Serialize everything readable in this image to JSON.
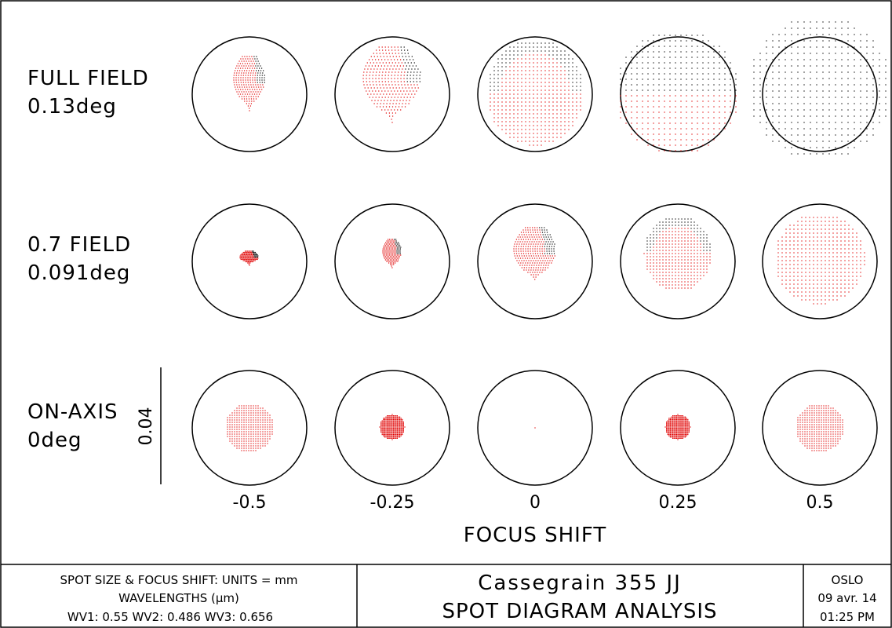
{
  "title": "Cassegrain 355 JJ",
  "subtitle": "SPOT DIAGRAM ANALYSIS",
  "program": "OSLO",
  "date": "09 avr. 14",
  "time": "01:25 PM",
  "units_line": "SPOT SIZE & FOCUS SHIFT: UNITS = mm",
  "wavelengths_label": "WAVELENGTHS (μm)",
  "wavelengths_line": "WV1: 0.55 WV2: 0.486 WV3: 0.656",
  "scale_label": "0.04",
  "fields": [
    {
      "name": "FULL FIELD",
      "angle": "0.13deg"
    },
    {
      "name": "0.7 FIELD",
      "angle": "0.091deg"
    },
    {
      "name": "ON-AXIS",
      "angle": "0deg"
    }
  ],
  "chart_data": {
    "type": "scatter",
    "xlabel": "FOCUS SHIFT",
    "focus_shifts": [
      "-0.5",
      "-0.25",
      "0",
      "0.25",
      "0.5"
    ],
    "spot_color": "#e00000",
    "circle_diameter_units": 0.04
  }
}
